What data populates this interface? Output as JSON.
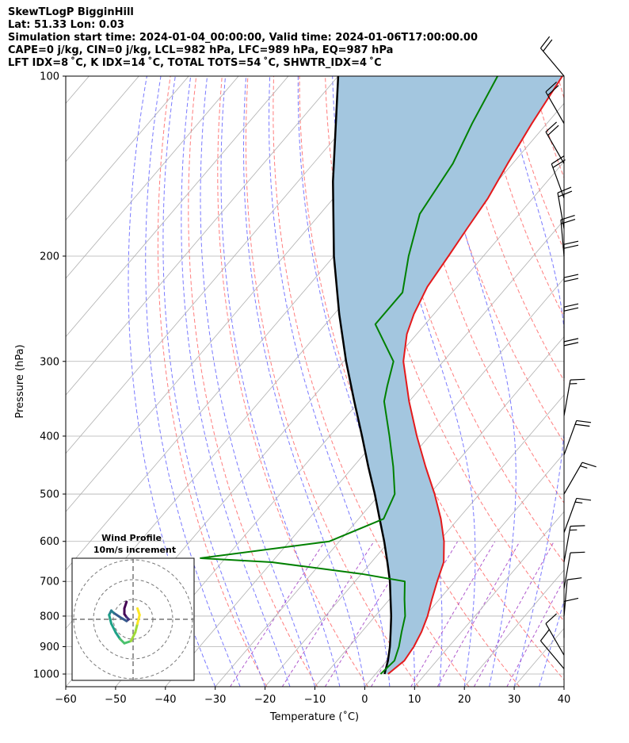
{
  "header": {
    "line1": "SkewTLogP BigginHill",
    "line2": "Lat: 51.33   Lon: 0.03",
    "line3": "Simulation start time: 2024-01-04_00:00:00, Valid time: 2024-01-06T17:00:00.00",
    "line4": "CAPE=0 j/kg, CIN=0 j/kg, LCL=982 hPa, LFC=989 hPa, EQ=987 hPa",
    "line5": "LFT IDX=8 ˚C, K IDX=14 ˚C, TOTAL TOTS=54 ˚C, SHWTR_IDX=4 ˚C"
  },
  "chart_data": {
    "type": "line",
    "xlabel": "Temperature (˚C)",
    "ylabel": "Pressure (hPa)",
    "xlim": [
      -60,
      40
    ],
    "ylim": [
      1050,
      100
    ],
    "y_scale": "log",
    "grid": true,
    "x_ticks": [
      -60,
      -50,
      -40,
      -30,
      -20,
      -10,
      0,
      10,
      20,
      30,
      40
    ],
    "y_ticks": [
      100,
      200,
      300,
      400,
      500,
      600,
      700,
      800,
      900,
      1000
    ],
    "colors": {
      "temperature": "#e41a1c",
      "dewpoint": "#008000",
      "parcel": "#000000",
      "cape_fill": "#a3c6df",
      "dry_adiabat": "#ff6666",
      "moist_adiabat": "#6a6aff",
      "mixing_ratio": "#9b30c0",
      "isotherm": "#b0b0b0"
    },
    "series": [
      {
        "key": "temperature",
        "points": [
          [
            1000,
            2.5
          ],
          [
            950,
            3.5
          ],
          [
            900,
            3.0
          ],
          [
            850,
            2.0
          ],
          [
            800,
            0.5
          ],
          [
            750,
            -1.5
          ],
          [
            700,
            -3.5
          ],
          [
            650,
            -5.5
          ],
          [
            600,
            -9.0
          ],
          [
            550,
            -13.5
          ],
          [
            500,
            -19.0
          ],
          [
            450,
            -25.5
          ],
          [
            400,
            -32.5
          ],
          [
            350,
            -40.0
          ],
          [
            300,
            -48.0
          ],
          [
            270,
            -52.0
          ],
          [
            250,
            -54.0
          ],
          [
            225,
            -56.0
          ],
          [
            200,
            -57.0
          ],
          [
            180,
            -58.0
          ],
          [
            160,
            -59.0
          ],
          [
            140,
            -61.0
          ],
          [
            120,
            -63.0
          ],
          [
            100,
            -65.0
          ]
        ]
      },
      {
        "key": "dewpoint",
        "points": [
          [
            1000,
            1.0
          ],
          [
            950,
            1.5
          ],
          [
            900,
            0.0
          ],
          [
            850,
            -2.0
          ],
          [
            800,
            -4.0
          ],
          [
            750,
            -7.0
          ],
          [
            700,
            -10.0
          ],
          [
            680,
            -20.0
          ],
          [
            650,
            -40.0
          ],
          [
            640,
            -55.0
          ],
          [
            600,
            -32.0
          ],
          [
            550,
            -25.0
          ],
          [
            500,
            -27.0
          ],
          [
            450,
            -32.0
          ],
          [
            400,
            -38.0
          ],
          [
            350,
            -45.0
          ],
          [
            330,
            -47.0
          ],
          [
            300,
            -50.0
          ],
          [
            260,
            -60.0
          ],
          [
            230,
            -60.0
          ],
          [
            200,
            -65.0
          ],
          [
            170,
            -70.0
          ],
          [
            140,
            -72.0
          ],
          [
            120,
            -75.0
          ],
          [
            100,
            -78.0
          ]
        ]
      },
      {
        "key": "parcel",
        "points": [
          [
            1000,
            1.8
          ],
          [
            950,
            0.2
          ],
          [
            900,
            -1.8
          ],
          [
            850,
            -4.2
          ],
          [
            800,
            -6.8
          ],
          [
            750,
            -9.8
          ],
          [
            700,
            -13.0
          ],
          [
            650,
            -16.8
          ],
          [
            600,
            -21.0
          ],
          [
            550,
            -25.8
          ],
          [
            500,
            -31.0
          ],
          [
            450,
            -37.0
          ],
          [
            400,
            -43.5
          ],
          [
            350,
            -51.0
          ],
          [
            300,
            -59.5
          ],
          [
            250,
            -69.0
          ],
          [
            200,
            -80.0
          ],
          [
            150,
            -93.0
          ],
          [
            100,
            -110.0
          ]
        ]
      }
    ],
    "wind_barbs": [
      {
        "p": 100,
        "dir": 320,
        "speed_kt": 20
      },
      {
        "p": 120,
        "dir": 330,
        "speed_kt": 20
      },
      {
        "p": 140,
        "dir": 330,
        "speed_kt": 20
      },
      {
        "p": 160,
        "dir": 340,
        "speed_kt": 20
      },
      {
        "p": 180,
        "dir": 350,
        "speed_kt": 20
      },
      {
        "p": 200,
        "dir": 355,
        "speed_kt": 20
      },
      {
        "p": 220,
        "dir": 0,
        "speed_kt": 20
      },
      {
        "p": 250,
        "dir": 0,
        "speed_kt": 20
      },
      {
        "p": 280,
        "dir": 0,
        "speed_kt": 20
      },
      {
        "p": 320,
        "dir": 0,
        "speed_kt": 20
      },
      {
        "p": 370,
        "dir": 10,
        "speed_kt": 15
      },
      {
        "p": 430,
        "dir": 20,
        "speed_kt": 20
      },
      {
        "p": 500,
        "dir": 30,
        "speed_kt": 15
      },
      {
        "p": 580,
        "dir": 20,
        "speed_kt": 15
      },
      {
        "p": 650,
        "dir": 10,
        "speed_kt": 15
      },
      {
        "p": 720,
        "dir": 10,
        "speed_kt": 10
      },
      {
        "p": 800,
        "dir": 5,
        "speed_kt": 10
      },
      {
        "p": 870,
        "dir": 0,
        "speed_kt": 10
      },
      {
        "p": 930,
        "dir": 330,
        "speed_kt": 10
      },
      {
        "p": 980,
        "dir": 320,
        "speed_kt": 10
      }
    ],
    "inset": {
      "title_line1": "Wind Profile",
      "title_line2": "10m/s increment",
      "hodograph_points": [
        [
          -1.5,
          4.0
        ],
        [
          -2.0,
          2.5
        ],
        [
          -2.0,
          1.2
        ],
        [
          -1.5,
          0.5
        ],
        [
          -1.0,
          0.0
        ],
        [
          -1.5,
          -0.4
        ],
        [
          -3.0,
          0.5
        ],
        [
          -4.5,
          1.5
        ],
        [
          -5.0,
          2.0
        ],
        [
          -5.5,
          1.0
        ],
        [
          -5.0,
          -1.0
        ],
        [
          -4.0,
          -3.0
        ],
        [
          -3.0,
          -4.5
        ],
        [
          -2.0,
          -5.5
        ],
        [
          -0.5,
          -5.0
        ],
        [
          0.5,
          -3.0
        ],
        [
          1.0,
          -1.0
        ],
        [
          1.5,
          1.0
        ],
        [
          1.0,
          2.5
        ]
      ],
      "ring_count": 3
    }
  }
}
